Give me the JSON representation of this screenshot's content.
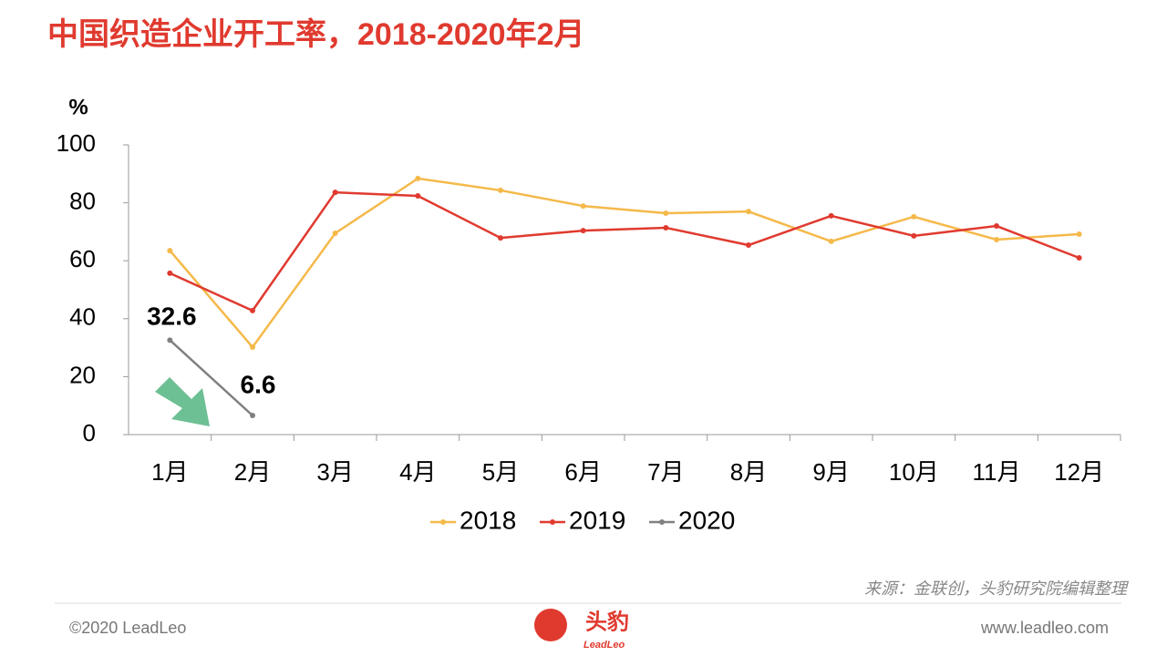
{
  "title": "中国织造企业开工率，2018-2020年2月",
  "chart_data": {
    "type": "line",
    "y_label": "%",
    "categories": [
      "1月",
      "2月",
      "3月",
      "4月",
      "5月",
      "6月",
      "7月",
      "8月",
      "9月",
      "10月",
      "11月",
      "12月"
    ],
    "series": [
      {
        "name": "2018",
        "color": "#f5b94a",
        "values": [
          63.5,
          30.2,
          69.5,
          88.4,
          84.3,
          78.9,
          76.4,
          77,
          66.7,
          75.2,
          67.3,
          69.2
        ]
      },
      {
        "name": "2019",
        "color": "#e03a2f",
        "values": [
          55.7,
          42.8,
          83.6,
          82.4,
          67.9,
          70.4,
          71.4,
          65.4,
          75.5,
          68.6,
          72,
          61
        ]
      },
      {
        "name": "2020",
        "color": "#808080",
        "values": [
          32.6,
          6.6,
          null,
          null,
          null,
          null,
          null,
          null,
          null,
          null,
          null,
          null
        ],
        "data_labels": true
      }
    ],
    "ylim": [
      0,
      100
    ],
    "yticks": [
      0,
      20,
      40,
      60,
      80,
      100
    ],
    "grid": false,
    "legend": "bottom"
  },
  "source": "来源：金联创，头豹研究院编辑整理",
  "footer": {
    "copyright": "©2020 LeadLeo",
    "logo_cn": "头豹",
    "logo_en": "LeadLeo",
    "url": "www.leadleo.com"
  }
}
